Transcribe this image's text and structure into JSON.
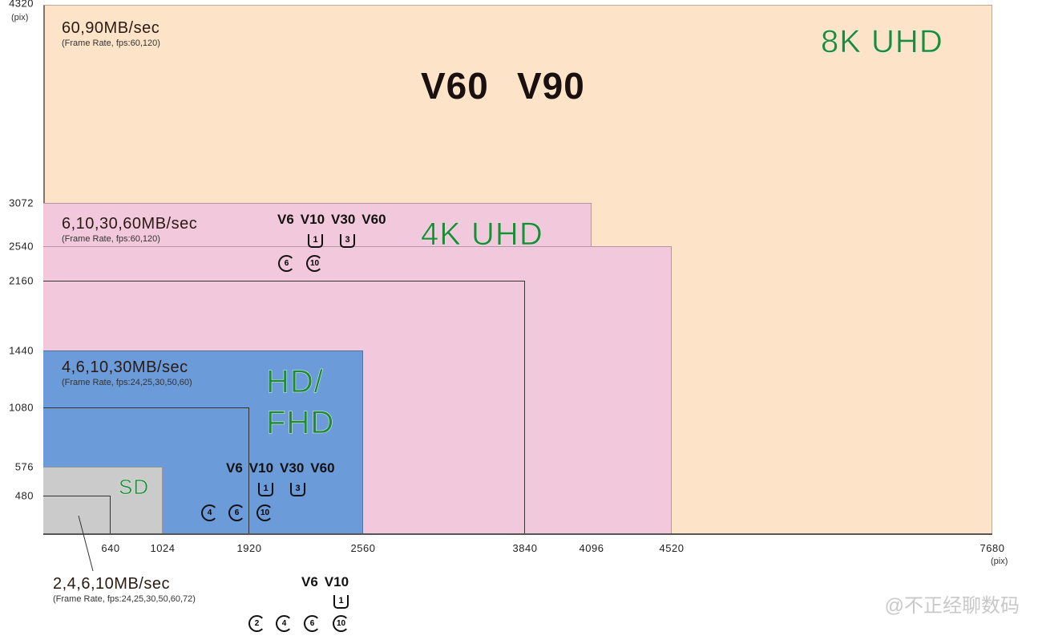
{
  "axes": {
    "x_ticks": [
      640,
      1024,
      1920,
      2560,
      3840,
      4096,
      4520,
      7680
    ],
    "y_ticks": [
      480,
      576,
      1080,
      1440,
      2160,
      2540,
      3072,
      4320
    ],
    "x_unit": "(pix)",
    "y_unit": "(pix)"
  },
  "regions": [
    {
      "id": "8k",
      "w": 7680,
      "h": 4320,
      "color": "#fde4c9"
    },
    {
      "id": "4k-a",
      "w": 4096,
      "h": 3072,
      "color": "#f2c8dc"
    },
    {
      "id": "4k-b",
      "w": 4520,
      "h": 2540,
      "color": "#f2c8dc"
    },
    {
      "id": "uhd-outline",
      "w": 3840,
      "h": 2160,
      "color": "none"
    },
    {
      "id": "hd",
      "w": 2560,
      "h": 1440,
      "color": "#6b9bd9"
    },
    {
      "id": "fhd-outline",
      "w": 1920,
      "h": 1080,
      "color": "none"
    },
    {
      "id": "sd",
      "w": 1024,
      "h": 576,
      "color": "#cbcbcb"
    },
    {
      "id": "vga-outline",
      "w": 640,
      "h": 480,
      "color": "none"
    }
  ],
  "classes": {
    "k8": {
      "label": "8K UHD",
      "speed": "60,90MB/sec",
      "frame": "(Frame Rate, fps:60,120)",
      "v": [
        "V60",
        "V90"
      ]
    },
    "k4": {
      "label": "4K UHD",
      "speed": "6,10,30,60MB/sec",
      "frame": "(Frame Rate, fps:60,120)",
      "v": [
        "V6",
        "V10",
        "V30",
        "V60"
      ],
      "u": [
        "1",
        "3"
      ],
      "c": [
        "6",
        "10"
      ]
    },
    "hd": {
      "label1": "HD/",
      "label2": "FHD",
      "speed": "4,6,10,30MB/sec",
      "frame": "(Frame Rate, fps:24,25,30,50,60)",
      "v": [
        "V6",
        "V10",
        "V30",
        "V60"
      ],
      "u": [
        "1",
        "3"
      ],
      "c": [
        "4",
        "6",
        "10"
      ]
    },
    "sd": {
      "label": "SD",
      "speed": "2,4,6,10MB/sec",
      "frame": "(Frame Rate, fps:24,25,30,50,60,72)",
      "v": [
        "V6",
        "V10"
      ],
      "u": [
        "1"
      ],
      "c": [
        "2",
        "4",
        "6",
        "10"
      ]
    }
  },
  "watermark": "@不正经聊数码",
  "colors": {
    "label_green": "#1f8a3a"
  }
}
